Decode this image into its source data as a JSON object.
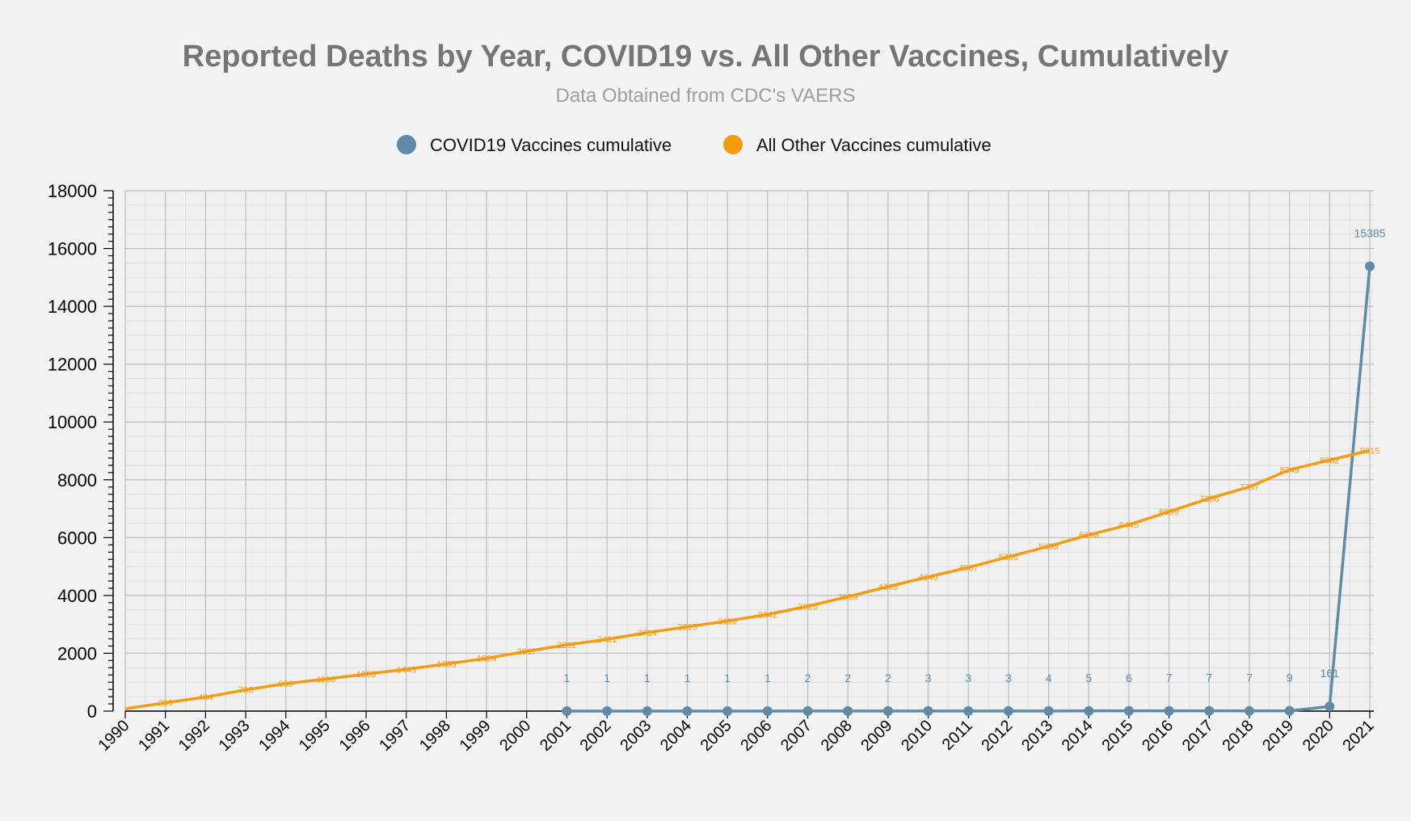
{
  "chart_data": {
    "type": "line",
    "title": "Reported Deaths by Year, COVID19 vs. All Other Vaccines, Cumulatively",
    "subtitle": "Data Obtained from CDC's VAERS",
    "xlabel": "",
    "ylabel": "",
    "ylim": [
      0,
      18000
    ],
    "yticks": [
      0,
      2000,
      4000,
      6000,
      8000,
      10000,
      12000,
      14000,
      16000,
      18000
    ],
    "grid": true,
    "legend_position": "top-center",
    "categories": [
      "1990",
      "1991",
      "1992",
      "1993",
      "1994",
      "1995",
      "1996",
      "1997",
      "1998",
      "1999",
      "2000",
      "2001",
      "2002",
      "2003",
      "2004",
      "2005",
      "2006",
      "2007",
      "2008",
      "2009",
      "2010",
      "2011",
      "2012",
      "2013",
      "2014",
      "2015",
      "2016",
      "2017",
      "2018",
      "2019",
      "2020",
      "2021"
    ],
    "series": [
      {
        "name": "COVID19 Vaccines cumulative",
        "color": "#5f8ba6",
        "values": [
          null,
          null,
          null,
          null,
          null,
          null,
          null,
          null,
          null,
          null,
          null,
          1,
          1,
          1,
          1,
          1,
          1,
          2,
          2,
          2,
          3,
          3,
          3,
          4,
          5,
          6,
          7,
          7,
          7,
          9,
          161,
          15385
        ]
      },
      {
        "name": "All Other Vaccines cumulative",
        "color": "#f39c12",
        "values": [
          82,
          289,
          484,
          736,
          950,
          1106,
          1283,
          1445,
          1633,
          1824,
          2067,
          2292,
          2481,
          2714,
          2915,
          3116,
          3342,
          3625,
          3959,
          4303,
          4640,
          4967,
          5336,
          5698,
          6096,
          6445,
          6899,
          7356,
          7757,
          8349,
          8682,
          9015
        ]
      }
    ]
  }
}
